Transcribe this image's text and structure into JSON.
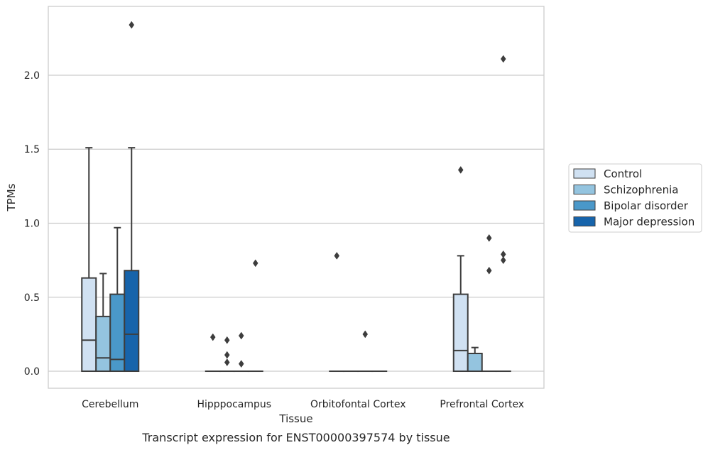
{
  "chart_data": {
    "type": "box",
    "title": "",
    "caption": "Transcript expression for ENST00000397574 by tissue",
    "xlabel": "Tissue",
    "ylabel": "TPMs",
    "ylim": [
      -0.115,
      2.465
    ],
    "yticks": [
      0.0,
      0.5,
      1.0,
      1.5,
      2.0
    ],
    "ytick_labels": [
      "0.0",
      "0.5",
      "1.0",
      "1.5",
      "2.0"
    ],
    "categories": [
      "Cerebellum",
      "Hipppocampus",
      "Orbitofontal Cortex",
      "Prefrontal Cortex"
    ],
    "grid": "horizontal",
    "legend_position": "right",
    "series": [
      {
        "name": "Control",
        "color": "#d0e1f2",
        "boxes": [
          {
            "q1": 0.0,
            "median": 0.21,
            "q3": 0.63,
            "whisker_low": 0.0,
            "whisker_high": 1.51,
            "outliers": []
          },
          {
            "q1": 0.0,
            "median": 0.0,
            "q3": 0.0,
            "whisker_low": 0.0,
            "whisker_high": 0.0,
            "outliers": [
              0.23
            ]
          },
          {
            "q1": 0.0,
            "median": 0.0,
            "q3": 0.0,
            "whisker_low": 0.0,
            "whisker_high": 0.0,
            "outliers": [
              0.78
            ]
          },
          {
            "q1": 0.0,
            "median": 0.14,
            "q3": 0.52,
            "whisker_low": 0.0,
            "whisker_high": 0.78,
            "outliers": [
              1.36
            ]
          }
        ]
      },
      {
        "name": "Schizophrenia",
        "color": "#94c4df",
        "boxes": [
          {
            "q1": 0.0,
            "median": 0.09,
            "q3": 0.37,
            "whisker_low": 0.0,
            "whisker_high": 0.66,
            "outliers": []
          },
          {
            "q1": 0.0,
            "median": 0.0,
            "q3": 0.0,
            "whisker_low": 0.0,
            "whisker_high": 0.0,
            "outliers": [
              0.21,
              0.11,
              0.06
            ]
          },
          {
            "q1": 0.0,
            "median": 0.0,
            "q3": 0.0,
            "whisker_low": 0.0,
            "whisker_high": 0.0,
            "outliers": []
          },
          {
            "q1": 0.0,
            "median": 0.12,
            "q3": 0.12,
            "whisker_low": 0.0,
            "whisker_high": 0.16,
            "outliers": []
          }
        ]
      },
      {
        "name": "Bipolar disorder",
        "color": "#4a98c9",
        "boxes": [
          {
            "q1": 0.0,
            "median": 0.08,
            "q3": 0.52,
            "whisker_low": 0.0,
            "whisker_high": 0.97,
            "outliers": []
          },
          {
            "q1": 0.0,
            "median": 0.0,
            "q3": 0.0,
            "whisker_low": 0.0,
            "whisker_high": 0.0,
            "outliers": [
              0.24,
              0.05
            ]
          },
          {
            "q1": 0.0,
            "median": 0.0,
            "q3": 0.0,
            "whisker_low": 0.0,
            "whisker_high": 0.0,
            "outliers": [
              0.25
            ]
          },
          {
            "q1": 0.0,
            "median": 0.0,
            "q3": 0.0,
            "whisker_low": 0.0,
            "whisker_high": 0.0,
            "outliers": [
              0.9,
              0.68
            ]
          }
        ]
      },
      {
        "name": "Major depression",
        "color": "#1764ab",
        "boxes": [
          {
            "q1": 0.0,
            "median": 0.25,
            "q3": 0.68,
            "whisker_low": 0.0,
            "whisker_high": 1.51,
            "outliers": [
              2.34
            ]
          },
          {
            "q1": 0.0,
            "median": 0.0,
            "q3": 0.0,
            "whisker_low": 0.0,
            "whisker_high": 0.0,
            "outliers": [
              0.73
            ]
          },
          {
            "q1": 0.0,
            "median": 0.0,
            "q3": 0.0,
            "whisker_low": 0.0,
            "whisker_high": 0.0,
            "outliers": []
          },
          {
            "q1": 0.0,
            "median": 0.0,
            "q3": 0.0,
            "whisker_low": 0.0,
            "whisker_high": 0.0,
            "outliers": [
              2.11,
              0.79,
              0.75
            ]
          }
        ]
      }
    ]
  }
}
